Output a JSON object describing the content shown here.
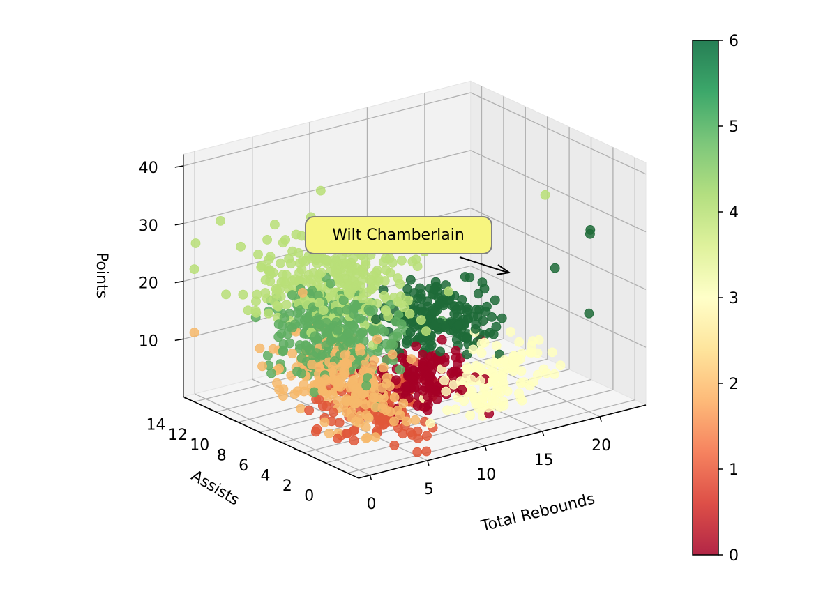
{
  "chart_data": {
    "type": "scatter",
    "projection": "3d",
    "title": "",
    "xlabel": "Total Rebounds",
    "ylabel": "Assists",
    "zlabel": "Points",
    "xlim": [
      -1,
      24
    ],
    "ylim": [
      -1,
      15
    ],
    "zlim": [
      0,
      42
    ],
    "x_ticks": [
      "0",
      "5",
      "10",
      "15",
      "20"
    ],
    "y_ticks": [
      "0",
      "2",
      "4",
      "6",
      "8",
      "10",
      "12",
      "14"
    ],
    "z_ticks": [
      "10",
      "20",
      "30",
      "40"
    ],
    "grid": true,
    "colormap": "RdYlGn",
    "colorbar": {
      "range": [
        0,
        6
      ],
      "ticks": [
        "0",
        "1",
        "2",
        "3",
        "4",
        "5",
        "6"
      ],
      "stops": [
        "#a50026",
        "#d73027",
        "#f46d43",
        "#fdae61",
        "#fee08b",
        "#ffffbf",
        "#d9ef8b",
        "#a6d96a",
        "#66bd63",
        "#1a9850",
        "#006837"
      ]
    },
    "clusters": [
      {
        "value": 0,
        "color": "#a50026",
        "center": [
          7,
          1.5,
          11
        ],
        "spread": [
          1.8,
          1.2,
          2.4
        ],
        "count": 140
      },
      {
        "value": 1,
        "color": "#e0583a",
        "center": [
          4.5,
          3.5,
          6.5
        ],
        "spread": [
          2.0,
          1.6,
          2.6
        ],
        "count": 170
      },
      {
        "value": 2,
        "color": "#f6b96b",
        "center": [
          1.5,
          3.5,
          12
        ],
        "spread": [
          1.2,
          2.4,
          3.6
        ],
        "count": 220
      },
      {
        "value": 3,
        "color": "#ffffbf",
        "center": [
          11,
          -0.5,
          11
        ],
        "spread": [
          2.0,
          0.9,
          3.0
        ],
        "count": 120
      },
      {
        "value": 4,
        "color": "#b9df78",
        "center": [
          4.5,
          7,
          24
        ],
        "spread": [
          2.6,
          2.8,
          2.6
        ],
        "count": 260
      },
      {
        "value": 5,
        "color": "#5fae61",
        "center": [
          2.5,
          5,
          18
        ],
        "spread": [
          1.8,
          2.0,
          3.2
        ],
        "count": 280
      },
      {
        "value": 6,
        "color": "#1e6b38",
        "center": [
          10,
          3,
          19
        ],
        "spread": [
          1.8,
          1.5,
          2.8
        ],
        "count": 180
      }
    ],
    "outliers": [
      {
        "x": 10,
        "y": 14,
        "z": 31,
        "value": 4
      },
      {
        "x": 20,
        "y": 4,
        "z": 34,
        "value": 4
      },
      {
        "x": 22,
        "y": 2,
        "z": 28,
        "value": 6
      },
      {
        "x": 18,
        "y": 1,
        "z": 25,
        "value": 6
      },
      {
        "x": 20,
        "y": 0,
        "z": 17,
        "value": 6
      },
      {
        "x": 17,
        "y": 0,
        "z": 8,
        "value": 3
      },
      {
        "x": -1,
        "y": 14,
        "z": 23,
        "value": 4
      },
      {
        "x": -1,
        "y": 14,
        "z": 12,
        "value": 2
      }
    ],
    "highlight": {
      "x": 22.5,
      "y": 2.5,
      "z": 28,
      "value": 6
    },
    "annotation": {
      "text": "Wilt Chamberlain",
      "box_color": "#f7f57f",
      "border_color": "#7f7f7f"
    }
  }
}
